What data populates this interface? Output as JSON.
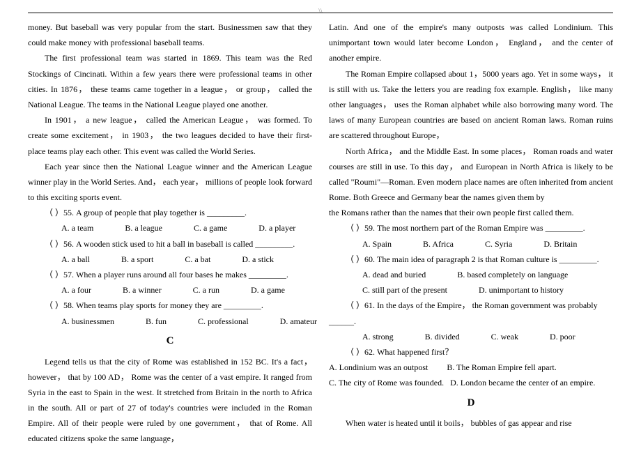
{
  "page_marker": "\\\\",
  "left": {
    "p1": "money. But baseball was very popular from the start. Businessmen saw that they could make money with professional baseball teams.",
    "p2": "The first professional team was started in 1869. This team was the Red Stockings of Cincinati. Within a few years there were professional teams in other cities. In 1876， these teams came together in a league， or group， called the National League. The teams in the National League played one another.",
    "p3": "In 1901， a new league， called the American League， was formed. To create some excitement， in 1903， the two leagues decided to have their first-place teams play each other. This event was called the World Series.",
    "p4": "Each year since then the National League winner and the American League winner play in the World Series. And， each year， millions of people look forward to this exciting sports event.",
    "q55": "（  ）55. A group of people that play together is _________.",
    "o55a": "A. a team",
    "o55b": "B. a league",
    "o55c": "C. a game",
    "o55d": "D. a player",
    "q56": "（  ）56. A wooden stick used to hit a ball in baseball is called _________.",
    "o56a": "A. a ball",
    "o56b": "B. a sport",
    "o56c": "C. a bat",
    "o56d": "D. a stick",
    "q57": "（  ）57. When a player runs around all four bases he makes _________.",
    "o57a": "A. a four",
    "o57b": "B. a winner",
    "o57c": "C. a run",
    "o57d": "D. a game",
    "q58": "（  ）58. When teams play sports for money they are _________.",
    "o58a": "A. businessmen",
    "o58b": "B. fun",
    "o58c": "C. professional",
    "o58d": "D. amateur",
    "headC": "C",
    "pC": "Legend tells us that the city of Rome was established in 152 BC. It's a fact， however， that by 100 AD， Rome was the center of a vast empire. It ranged from Syria in the east to Spain in the west. It stretched from Britain in the north to Africa in the south. All or part of 27 of today's countries were included in the Roman Empire. All of their people were ruled by one government， that of Rome. All educated citizens spoke the same language，"
  },
  "right": {
    "p1": "Latin. And one of the empire's many outposts was called Londinium. This unimportant town would later become London， England， and the center of another empire.",
    "p2": "The Roman Empire collapsed about 1，5000 years ago. Yet in some ways， it is still with us. Take the letters you are reading fox example. English， like many other languages， uses the Roman alphabet while also borrowing many word. The laws of many European countries are based on ancient Roman laws. Roman ruins are scattered throughout Europe，",
    "p3": "North Africa， and the Middle East. In some places， Roman roads and water courses are still in use. To this day， and European in North Africa is likely to be called \"Roumi\"—Roman. Even modern place names are often inherited from ancient Rome. Both Greece and Germany bear the names given them by",
    "p3b": "the Romans rather than the names that their own people first called them.",
    "q59": "（  ）59. The most northern part of the Roman Empire was _________.",
    "o59a": "A. Spain",
    "o59b": "B. Africa",
    "o59c": "C. Syria",
    "o59d": "D. Britain",
    "q60": "（  ）60. The main idea of paragraph 2 is that Roman culture is _________.",
    "o60a": "A. dead and buried",
    "o60b": "B. based completely on language",
    "o60c": "C. still part of the present",
    "o60d": "D. unimportant to history",
    "q61": "（  ）61. In the days of the Empire， the Roman government was probably",
    "q61b": "______.",
    "o61a": "A. strong",
    "o61b": "B. divided",
    "o61c": "C. weak",
    "o61d": "D. poor",
    "q62": "（  ）62. What happened first？",
    "o62a": "A. Londinium was an outpost",
    "o62b": "B. The Roman Empire fell apart.",
    "o62c": "C. The city of Rome was founded.",
    "o62d": "D. London became the center of an empire.",
    "headD": "D",
    "pD": "When water is heated until it boils， bubbles of gas appear and rise"
  }
}
